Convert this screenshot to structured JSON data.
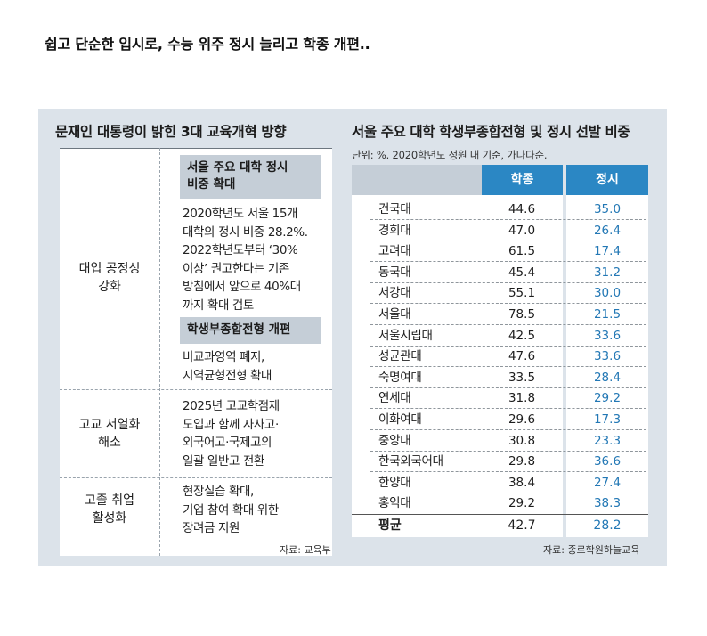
{
  "headline": "쉽고 단순한 입시로, 수능 위주 정시 늘리고 학종 개편..",
  "left": {
    "title": "문재인 대통령이 밝힌 3대 교육개혁 방향",
    "categories": [
      {
        "label_lines": [
          "대입 공정성",
          "강화"
        ]
      },
      {
        "label_lines": [
          "고교 서열화",
          "해소"
        ]
      },
      {
        "label_lines": [
          "고졸 취업",
          "활성화"
        ]
      }
    ],
    "subheads": [
      {
        "lines": [
          "서울 주요 대학 정시",
          "비중 확대"
        ]
      },
      {
        "lines": [
          "학생부종합전형 개편"
        ]
      }
    ],
    "paragraphs": [
      {
        "lines": [
          "2020학년도 서울 15개",
          "대학의 정시 비중 28.2%.",
          "2022학년도부터 ‘30%",
          "이상’ 권고한다는 기존",
          "방침에서 앞으로 40%대",
          "까지 확대 검토"
        ]
      },
      {
        "lines": [
          "비교과영역 폐지,",
          "지역균형전형 확대"
        ]
      },
      {
        "lines": [
          "2025년 고교학점제",
          "도입과 함께 자사고·",
          "외국어고·국제고의",
          "일괄 일반고 전환"
        ]
      },
      {
        "lines": [
          "현장실습 확대,",
          "기업 참여 확대 위한",
          "장려금 지원"
        ]
      }
    ],
    "source": "자료: 교육부"
  },
  "right": {
    "title": "서울 주요 대학 학생부종합전형 및 정시 선발 비중",
    "unit_note": "단위: %. 2020학년도 정원 내 기준, 가나다순.",
    "source": "자료: 종로학원하늘교육"
  },
  "chart_data": {
    "type": "table",
    "title": "서울 주요 대학 학생부종합전형 및 정시 선발 비중",
    "columns": [
      "학종",
      "정시"
    ],
    "rows": [
      {
        "name": "건국대",
        "values": [
          "44.6",
          "35.0"
        ]
      },
      {
        "name": "경희대",
        "values": [
          "47.0",
          "26.4"
        ]
      },
      {
        "name": "고려대",
        "values": [
          "61.5",
          "17.4"
        ]
      },
      {
        "name": "동국대",
        "values": [
          "45.4",
          "31.2"
        ]
      },
      {
        "name": "서강대",
        "values": [
          "55.1",
          "30.0"
        ]
      },
      {
        "name": "서울대",
        "values": [
          "78.5",
          "21.5"
        ]
      },
      {
        "name": "서울시립대",
        "values": [
          "42.5",
          "33.6"
        ]
      },
      {
        "name": "성균관대",
        "values": [
          "47.6",
          "33.6"
        ]
      },
      {
        "name": "숙명여대",
        "values": [
          "33.5",
          "28.4"
        ]
      },
      {
        "name": "연세대",
        "values": [
          "31.8",
          "29.2"
        ]
      },
      {
        "name": "이화여대",
        "values": [
          "29.6",
          "17.3"
        ]
      },
      {
        "name": "중앙대",
        "values": [
          "30.8",
          "23.3"
        ]
      },
      {
        "name": "한국외국어대",
        "values": [
          "29.8",
          "36.6"
        ]
      },
      {
        "name": "한양대",
        "values": [
          "38.4",
          "27.4"
        ]
      },
      {
        "name": "홍익대",
        "values": [
          "29.2",
          "38.3"
        ]
      }
    ],
    "average": {
      "name": "평균",
      "values": [
        "42.7",
        "28.2"
      ]
    },
    "colors": {
      "header": "#2b87c4",
      "jungsi_text": "#2378b5",
      "panel": "#dce3ea",
      "subhead": "#c5ced7"
    }
  }
}
